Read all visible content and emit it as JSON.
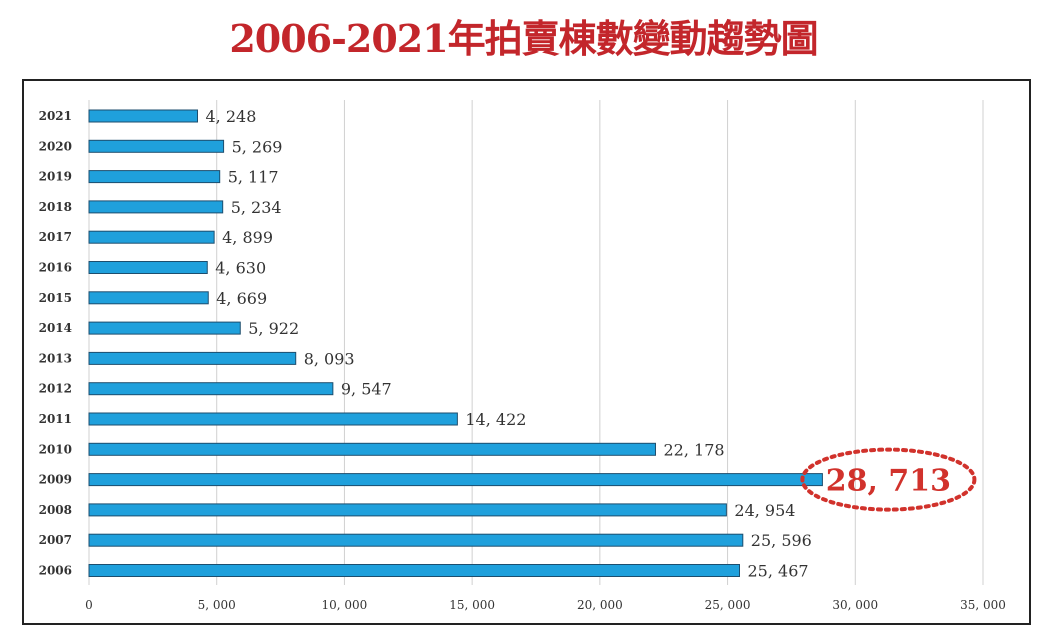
{
  "chart_data": {
    "type": "bar",
    "orientation": "horizontal",
    "title": "2006-2021年拍賣棟數變動趨勢圖",
    "xlabel": "",
    "ylabel": "",
    "categories": [
      "2021",
      "2020",
      "2019",
      "2018",
      "2017",
      "2016",
      "2015",
      "2014",
      "2013",
      "2012",
      "2011",
      "2010",
      "2009",
      "2008",
      "2007",
      "2006"
    ],
    "values": [
      4248,
      5269,
      5117,
      5234,
      4899,
      4630,
      4669,
      5922,
      8093,
      9547,
      14422,
      22178,
      28713,
      24954,
      25596,
      25467
    ],
    "data_labels": [
      "4, 248",
      "5, 269",
      "5, 117",
      "5, 234",
      "4, 899",
      "4, 630",
      "4, 669",
      "5, 922",
      "8, 093",
      "9, 547",
      "14, 422",
      "22, 178",
      "28, 713",
      "24, 954",
      "25, 596",
      "25, 467"
    ],
    "highlight_index": 12,
    "xlim": [
      0,
      35000
    ],
    "x_ticks": [
      0,
      5000,
      10000,
      15000,
      20000,
      25000,
      30000,
      35000
    ],
    "x_tick_labels": [
      "0",
      "5, 000",
      "10, 000",
      "15, 000",
      "20, 000",
      "25, 000",
      "30, 000",
      "35, 000"
    ],
    "grid": "vertical",
    "legend": "none",
    "colors": {
      "bar": "#1fa0dc",
      "bar_edge": "#1d4e6e",
      "title": "#c3262b",
      "highlight": "#d1322c",
      "grid": "#d0d0d0"
    }
  }
}
